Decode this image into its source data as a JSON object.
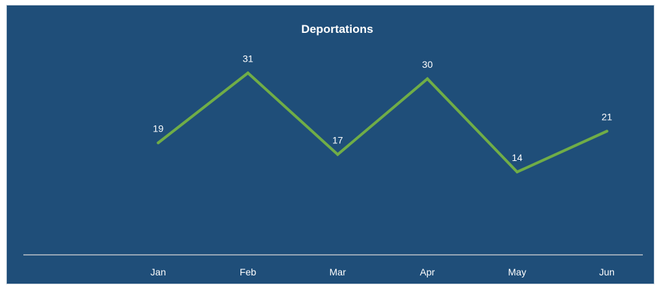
{
  "chart_data": {
    "type": "line",
    "title": "Deportations",
    "categories": [
      "Jan",
      "Feb",
      "Mar",
      "Apr",
      "May",
      "Jun"
    ],
    "values": [
      19,
      31,
      17,
      30,
      14,
      21
    ],
    "ylim": [
      0,
      40
    ],
    "grid": false,
    "legend": "none",
    "line_color": "#70ad47",
    "background_color": "#1f4e79",
    "text_color": "#ffffff",
    "axis_color": "#d9d9d9"
  }
}
